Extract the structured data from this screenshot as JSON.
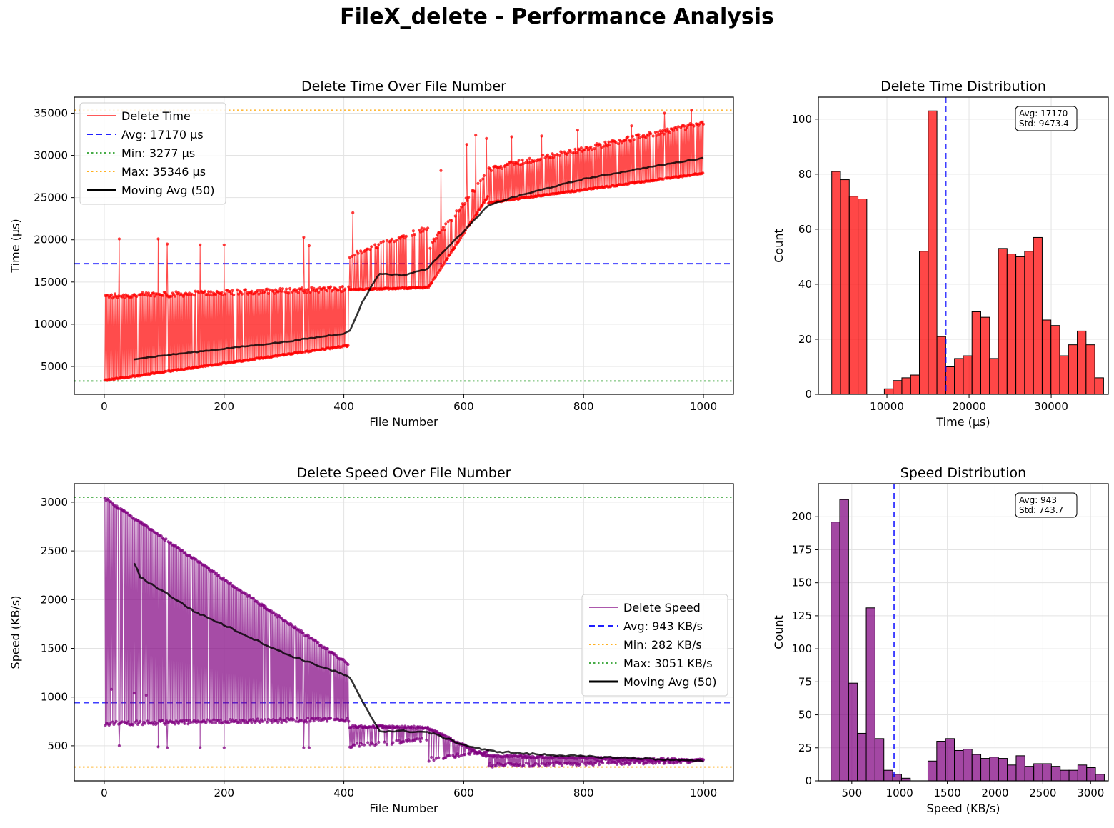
{
  "figure": {
    "title": "FileX_delete - Performance Analysis"
  },
  "colors": {
    "time": "#ff0000",
    "speed": "#800080",
    "avg": "#0000ff",
    "min_time": "#2ca02c",
    "max_time": "#ffa500",
    "min_speed": "#ffa500",
    "max_speed": "#2ca02c",
    "moving": "#000000"
  },
  "chart_data": [
    {
      "id": "time_line",
      "type": "line",
      "title": "Delete Time Over File Number",
      "xlabel": "File Number",
      "ylabel": "Time (µs)",
      "xlim": [
        -50,
        1050
      ],
      "ylim": [
        1700,
        36900
      ],
      "xticks": [
        0,
        200,
        400,
        600,
        800,
        1000
      ],
      "yticks": [
        5000,
        10000,
        15000,
        20000,
        25000,
        30000,
        35000
      ],
      "grid": true,
      "legend_position": "upper left",
      "n_points": 1000,
      "segments": [
        {
          "x_range": [
            1,
            408
          ],
          "baseline": [
            3277,
            7400
          ],
          "spike_level": [
            13300,
            14200
          ],
          "spike_fraction": 0.95,
          "tall_spikes": [
            [
              25,
              20100
            ],
            [
              90,
              20100
            ],
            [
              105,
              19500
            ],
            [
              160,
              19400
            ],
            [
              200,
              19400
            ],
            [
              333,
              20300
            ],
            [
              342,
              19300
            ]
          ]
        },
        {
          "x_range": [
            409,
            540
          ],
          "baseline": [
            14000,
            14300
          ],
          "spike_level": [
            18000,
            21500
          ],
          "spike_fraction": 0.6,
          "tall_spikes": [
            [
              415,
              23200
            ]
          ]
        },
        {
          "x_range": [
            541,
            640
          ],
          "baseline": [
            14300,
            25000
          ],
          "spike_level": [
            19000,
            28000
          ],
          "spike_fraction": 0.75,
          "tall_spikes": [
            [
              562,
              28200
            ],
            [
              605,
              31300
            ],
            [
              620,
              32400
            ],
            [
              638,
              32000
            ]
          ]
        },
        {
          "x_range": [
            641,
            1000
          ],
          "baseline": [
            24300,
            27800
          ],
          "spike_level": [
            28400,
            33800
          ],
          "spike_fraction": 0.9,
          "tall_spikes": [
            [
              680,
              32200
            ],
            [
              730,
              32300
            ],
            [
              790,
              33000
            ],
            [
              880,
              33500
            ],
            [
              935,
              35000
            ],
            [
              980,
              35346
            ]
          ]
        }
      ],
      "moving_avg": {
        "window": 50,
        "x": [
          50,
          100,
          200,
          300,
          400,
          410,
          430,
          450,
          460,
          500,
          540,
          560,
          600,
          640,
          680,
          750,
          800,
          900,
          1000
        ],
        "y": [
          5900,
          6300,
          7100,
          7900,
          8900,
          9200,
          12500,
          15000,
          16000,
          15800,
          16600,
          18200,
          21000,
          24000,
          25000,
          26300,
          27200,
          28500,
          29700
        ]
      },
      "series": [
        {
          "name": "Delete Time",
          "color": "#ff0000",
          "style": "solid"
        },
        {
          "name": "Avg: 17170 µs",
          "value": 17170,
          "color": "#0000ff",
          "style": "dashed"
        },
        {
          "name": "Min: 3277 µs",
          "value": 3277,
          "color": "#2ca02c",
          "style": "dotted"
        },
        {
          "name": "Max: 35346 µs",
          "value": 35346,
          "color": "#ffa500",
          "style": "dotted"
        },
        {
          "name": "Moving Avg (50)",
          "color": "#000000",
          "style": "solid"
        }
      ]
    },
    {
      "id": "time_hist",
      "type": "bar",
      "title": "Delete Time Distribution",
      "xlabel": "Time (µs)",
      "ylabel": "Count",
      "xlim": [
        1650,
        36950
      ],
      "ylim": [
        0,
        108
      ],
      "xticks": [
        10000,
        20000,
        30000
      ],
      "yticks": [
        0,
        20,
        40,
        60,
        80,
        100
      ],
      "grid": true,
      "bin_start": 3277,
      "bin_width": 1067.7,
      "counts": [
        81,
        78,
        72,
        71,
        0,
        0,
        2,
        5,
        6,
        7,
        52,
        103,
        21,
        10,
        13,
        14,
        30,
        28,
        13,
        53,
        51,
        50,
        52,
        57,
        27,
        25,
        14,
        18,
        23,
        18,
        6
      ],
      "avg_line": 17170,
      "stats": [
        "Avg: 17170",
        "Std: 9473.4"
      ],
      "color": "#ff0000"
    },
    {
      "id": "speed_line",
      "type": "line",
      "title": "Delete Speed Over File Number",
      "xlabel": "File Number",
      "ylabel": "Speed (KB/s)",
      "xlim": [
        -50,
        1050
      ],
      "ylim": [
        140,
        3190
      ],
      "xticks": [
        0,
        200,
        400,
        600,
        800,
        1000
      ],
      "yticks": [
        500,
        1000,
        1500,
        2000,
        2500,
        3000
      ],
      "grid": true,
      "legend_position": "center right",
      "n_points": 1000,
      "segments": [
        {
          "x_range": [
            1,
            408
          ],
          "top": [
            3051,
            1350
          ],
          "dip_level": [
            730,
            770
          ],
          "dip_fraction": 0.95,
          "low_dips": [
            [
              12,
              1080
            ],
            [
              25,
              500
            ],
            [
              50,
              1040
            ],
            [
              70,
              1020
            ],
            [
              90,
              490
            ],
            [
              105,
              480
            ],
            [
              160,
              480
            ],
            [
              200,
              480
            ],
            [
              333,
              480
            ],
            [
              342,
              480
            ]
          ]
        },
        {
          "x_range": [
            409,
            540
          ],
          "top": [
            710,
            700
          ],
          "dip_level": [
            500,
            560
          ],
          "dip_fraction": 0.6,
          "low_dips": []
        },
        {
          "x_range": [
            541,
            640
          ],
          "top": [
            690,
            400
          ],
          "dip_level": [
            360,
            450
          ],
          "dip_fraction": 0.75,
          "low_dips": []
        },
        {
          "x_range": [
            641,
            1000
          ],
          "top": [
            410,
            360
          ],
          "dip_level": [
            300,
            345
          ],
          "dip_fraction": 0.9,
          "low_dips": []
        }
      ],
      "moving_avg": {
        "window": 50,
        "x": [
          50,
          60,
          100,
          150,
          200,
          300,
          400,
          410,
          430,
          460,
          500,
          540,
          560,
          600,
          640,
          700,
          800,
          900,
          1000
        ],
        "y": [
          2380,
          2230,
          2080,
          1880,
          1740,
          1450,
          1230,
          1200,
          960,
          650,
          650,
          640,
          600,
          510,
          450,
          420,
          390,
          370,
          340
        ]
      },
      "series": [
        {
          "name": "Delete Speed",
          "color": "#800080",
          "style": "solid"
        },
        {
          "name": "Avg: 943 KB/s",
          "value": 943,
          "color": "#0000ff",
          "style": "dashed"
        },
        {
          "name": "Min: 282 KB/s",
          "value": 282,
          "color": "#ffa500",
          "style": "dotted"
        },
        {
          "name": "Max: 3051 KB/s",
          "value": 3051,
          "color": "#2ca02c",
          "style": "dotted"
        },
        {
          "name": "Moving Avg (50)",
          "color": "#000000",
          "style": "solid"
        }
      ]
    },
    {
      "id": "speed_hist",
      "type": "bar",
      "title": "Speed Distribution",
      "xlabel": "Speed (KB/s)",
      "ylabel": "Count",
      "xlim": [
        150,
        3185
      ],
      "ylim": [
        0,
        225
      ],
      "xticks": [
        500,
        1000,
        1500,
        2000,
        2500,
        3000
      ],
      "yticks": [
        0,
        25,
        50,
        75,
        100,
        125,
        150,
        175,
        200
      ],
      "grid": true,
      "bin_start": 282,
      "bin_width": 92.3,
      "counts": [
        196,
        213,
        74,
        36,
        131,
        32,
        8,
        5,
        2,
        0,
        0,
        15,
        30,
        32,
        23,
        24,
        20,
        17,
        18,
        17,
        12,
        19,
        11,
        13,
        13,
        11,
        8,
        8,
        12,
        10,
        5
      ],
      "avg_line": 943,
      "stats": [
        "Avg: 943",
        "Std: 743.7"
      ],
      "color": "#800080"
    }
  ]
}
